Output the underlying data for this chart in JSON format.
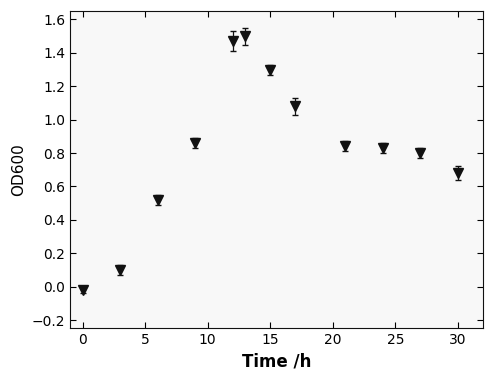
{
  "x": [
    0,
    3,
    6,
    9,
    12,
    13,
    15,
    17,
    21,
    24,
    27,
    30
  ],
  "y": [
    -0.02,
    0.1,
    0.52,
    0.86,
    1.47,
    1.5,
    1.3,
    1.08,
    0.84,
    0.83,
    0.8,
    0.68
  ],
  "yerr": [
    0.02,
    0.03,
    0.03,
    0.03,
    0.06,
    0.05,
    0.03,
    0.05,
    0.03,
    0.03,
    0.03,
    0.04
  ],
  "xlabel": "Time /h",
  "ylabel": "OD600",
  "xlim": [
    -1,
    32
  ],
  "ylim": [
    -0.25,
    1.65
  ],
  "xticks": [
    0,
    5,
    10,
    15,
    20,
    25,
    30
  ],
  "yticks": [
    -0.2,
    0.0,
    0.2,
    0.4,
    0.6,
    0.8,
    1.0,
    1.2,
    1.4,
    1.6
  ],
  "line_color": "#111111",
  "marker_color": "#111111",
  "marker": "v",
  "marker_size": 7,
  "linewidth": 1.3,
  "capsize": 2.5,
  "elinewidth": 0.9,
  "xlabel_fontsize": 12,
  "ylabel_fontsize": 11,
  "tick_fontsize": 10,
  "xlabel_bold": true,
  "figure_width": 4.94,
  "figure_height": 3.82,
  "dpi": 100
}
